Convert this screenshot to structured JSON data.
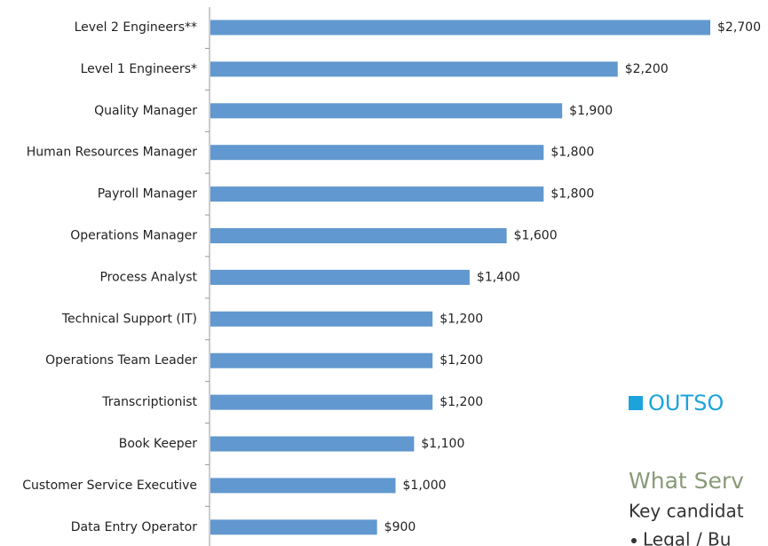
{
  "chart_data": {
    "type": "bar",
    "categories": [
      "Level 2 Engineers**",
      "Level 1 Engineers*",
      "Quality Manager",
      "Human Resources Manager",
      "Payroll Manager",
      "Operations Manager",
      "Process Analyst",
      "Technical Support (IT)",
      "Operations Team Leader",
      "Transcriptionist",
      "Book Keeper",
      "Customer Service Executive",
      "Data Entry Operator"
    ],
    "values": [
      2700,
      2200,
      1900,
      1800,
      1800,
      1600,
      1400,
      1200,
      1200,
      1200,
      1100,
      1000,
      900
    ],
    "value_labels": [
      "$2,700",
      "$2,200",
      "$1,900",
      "$1,800",
      "$1,800",
      "$1,600",
      "$1,400",
      "$1,200",
      "$1,200",
      "$1,200",
      "$1,100",
      "$1,000",
      "$900"
    ],
    "color": "#6198cf"
  },
  "side_text": {
    "heading": "OUTSO",
    "subheading": "What Serv",
    "line": "Key candidat",
    "bullet": "Legal / Bu"
  }
}
